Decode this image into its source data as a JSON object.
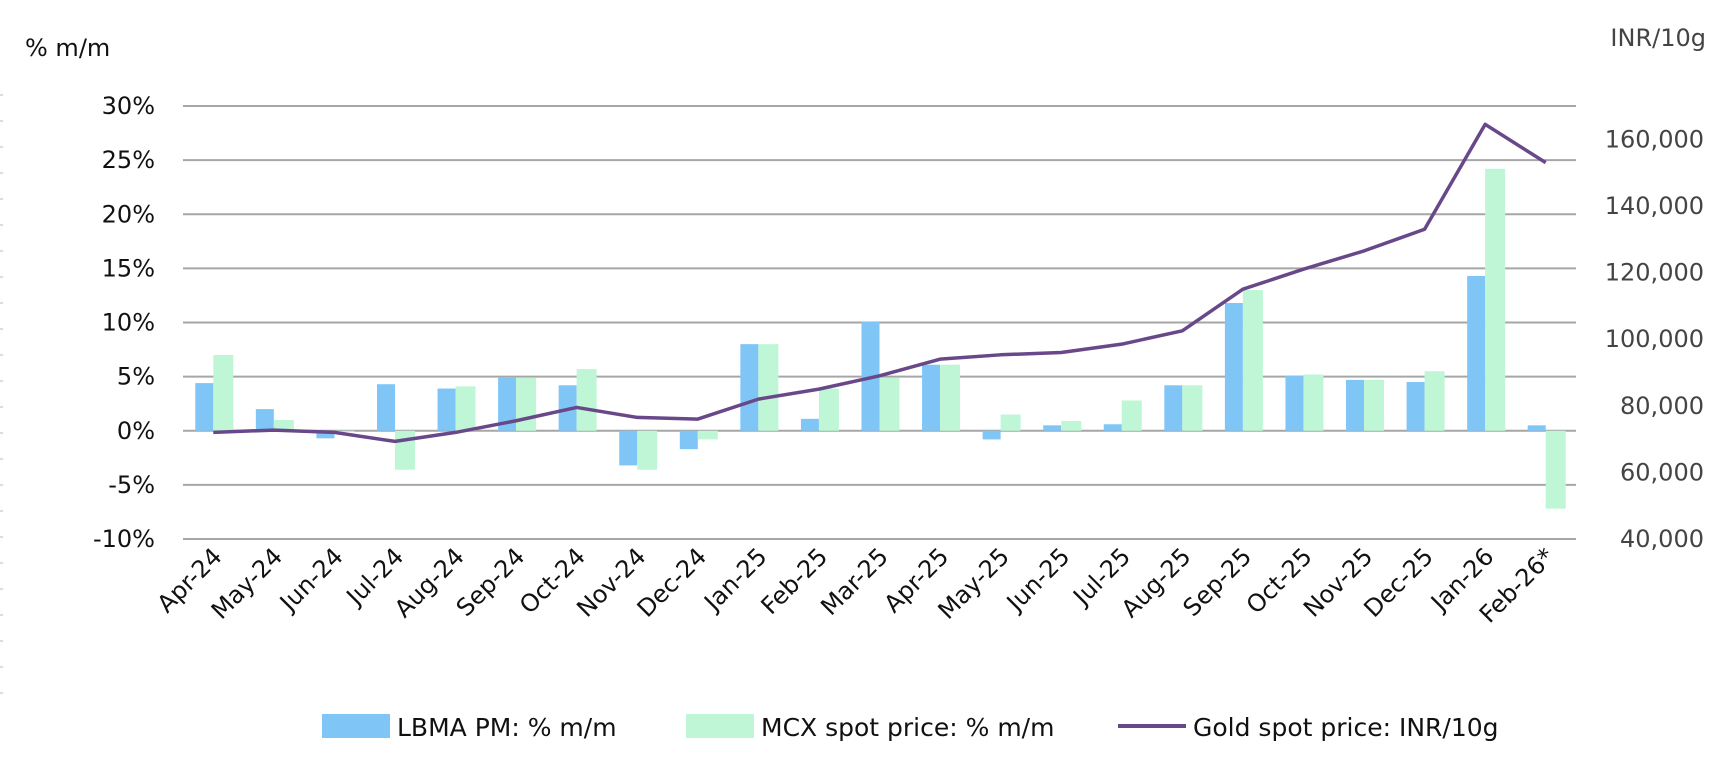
{
  "chart_data": {
    "type": "bar",
    "title": "",
    "ylabel_left": "% m/m",
    "ylabel_right": "INR/10g",
    "left_ticks": [
      "30%",
      "25%",
      "20%",
      "15%",
      "10%",
      "5%",
      "0%",
      "-5%",
      "-10%"
    ],
    "right_ticks": [
      "160,000",
      "140,000",
      "120,000",
      "100,000",
      "80,000",
      "60,000",
      "40,000"
    ],
    "ylim_left": [
      -10,
      30
    ],
    "ylim_right": [
      40000,
      170000
    ],
    "categories": [
      "Apr-24",
      "May-24",
      "Jun-24",
      "Jul-24",
      "Aug-24",
      "Sep-24",
      "Oct-24",
      "Nov-24",
      "Dec-24",
      "Jan-25",
      "Feb-25",
      "Mar-25",
      "Apr-25",
      "May-25",
      "Jun-25",
      "Jul-25",
      "Aug-25",
      "Sep-25",
      "Oct-25",
      "Nov-25",
      "Dec-25",
      "Jan-26",
      "Feb-26*"
    ],
    "series": [
      {
        "name": "LBMA PM: % m/m",
        "type": "bar",
        "axis": "left",
        "color": "#7fc6f7",
        "values": [
          4.4,
          2.0,
          -0.7,
          4.3,
          3.9,
          4.9,
          4.2,
          -3.2,
          -1.7,
          8.0,
          1.1,
          10.1,
          6.1,
          -0.8,
          0.5,
          0.6,
          4.2,
          11.8,
          5.1,
          4.7,
          4.5,
          14.3,
          0.5
        ]
      },
      {
        "name": "MCX spot price: % m/m",
        "type": "bar",
        "axis": "left",
        "color": "#bff7d6",
        "values": [
          7.0,
          1.0,
          0.0,
          -3.6,
          4.1,
          4.9,
          5.7,
          -3.6,
          -0.8,
          8.0,
          3.9,
          4.9,
          6.1,
          1.5,
          0.9,
          2.8,
          4.2,
          13.0,
          5.2,
          4.7,
          5.5,
          24.2,
          -7.2
        ]
      },
      {
        "name": "Gold spot price: INR/10g",
        "type": "line",
        "axis": "right",
        "color": "#69488a",
        "values": [
          72000,
          72700,
          72000,
          69300,
          72000,
          75500,
          79500,
          76500,
          76000,
          82000,
          85000,
          89000,
          94000,
          95300,
          96000,
          98500,
          102500,
          115000,
          121000,
          126500,
          133000,
          164500,
          153000
        ]
      }
    ],
    "legend": "bottom"
  }
}
